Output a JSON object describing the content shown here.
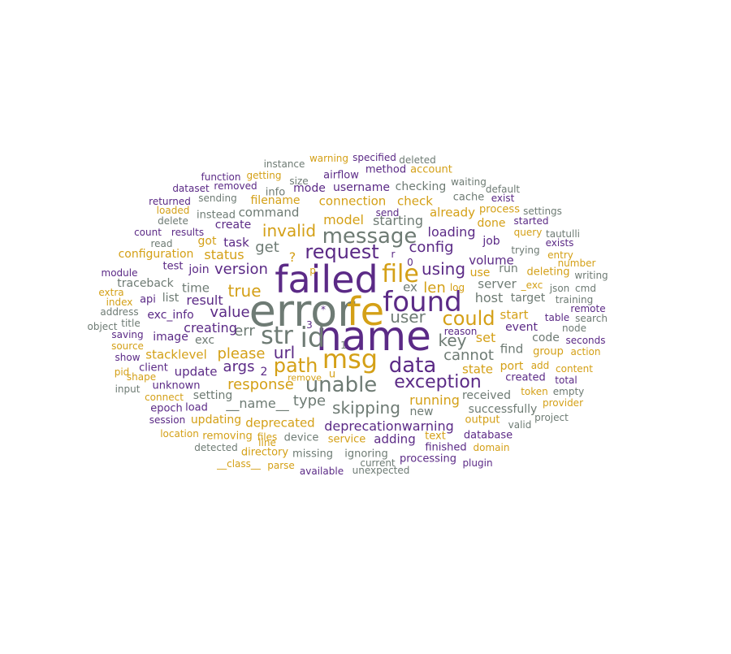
{
  "palette": {
    "purple": "#5b2a86",
    "gold": "#d4a017",
    "gray": "#6e7b74"
  },
  "words": [
    {
      "text": "error",
      "color": "gray"
    },
    {
      "text": "name",
      "color": "purple"
    },
    {
      "text": "failed",
      "color": "purple"
    },
    {
      "text": "fe",
      "color": "gold"
    },
    {
      "text": "id",
      "color": "gray"
    },
    {
      "text": "found",
      "color": "purple"
    },
    {
      "text": "str",
      "color": "gray"
    },
    {
      "text": "msg",
      "color": "gold"
    },
    {
      "text": "file",
      "color": "gold"
    },
    {
      "text": "message",
      "color": "gray"
    },
    {
      "text": "data",
      "color": "purple"
    },
    {
      "text": "unable",
      "color": "gray"
    },
    {
      "text": "request",
      "color": "purple"
    },
    {
      "text": "path",
      "color": "gold"
    },
    {
      "text": "exception",
      "color": "purple"
    },
    {
      "text": "could",
      "color": "gold"
    },
    {
      "text": "user",
      "color": "gray"
    },
    {
      "text": "key",
      "color": "gray"
    },
    {
      "text": "using",
      "color": "purple"
    },
    {
      "text": "url",
      "color": "purple"
    },
    {
      "text": "invalid",
      "color": "gold"
    },
    {
      "text": "skipping",
      "color": "gray"
    },
    {
      "text": "config",
      "color": "purple"
    },
    {
      "text": "true",
      "color": "gold"
    },
    {
      "text": "response",
      "color": "gold"
    },
    {
      "text": "value",
      "color": "purple"
    },
    {
      "text": "please",
      "color": "gold"
    },
    {
      "text": "len",
      "color": "gold"
    },
    {
      "text": "get",
      "color": "gray"
    },
    {
      "text": "version",
      "color": "purple"
    },
    {
      "text": "err",
      "color": "gray"
    },
    {
      "text": "args",
      "color": "purple"
    },
    {
      "text": "running",
      "color": "gold"
    },
    {
      "text": "cannot",
      "color": "gray"
    },
    {
      "text": "type",
      "color": "gray"
    },
    {
      "text": "__name__",
      "color": "gray"
    },
    {
      "text": "deprecationwarning",
      "color": "purple"
    },
    {
      "text": "loading",
      "color": "purple"
    },
    {
      "text": "creating",
      "color": "purple"
    },
    {
      "text": "model",
      "color": "gold"
    },
    {
      "text": "starting",
      "color": "gray"
    },
    {
      "text": "status",
      "color": "gold"
    },
    {
      "text": "host",
      "color": "gray"
    },
    {
      "text": "result",
      "color": "purple"
    },
    {
      "text": "set",
      "color": "gold"
    },
    {
      "text": "connection",
      "color": "gold"
    },
    {
      "text": "check",
      "color": "gold"
    },
    {
      "text": "already",
      "color": "gold"
    },
    {
      "text": "command",
      "color": "gray"
    },
    {
      "text": "2",
      "color": "purple"
    },
    {
      "text": "ex",
      "color": "gray"
    },
    {
      "text": "?",
      "color": "gold"
    },
    {
      "text": "state",
      "color": "gold"
    },
    {
      "text": "volume",
      "color": "purple"
    },
    {
      "text": "task",
      "color": "purple"
    },
    {
      "text": "deprecated",
      "color": "gold"
    },
    {
      "text": "update",
      "color": "purple"
    },
    {
      "text": "stacklevel",
      "color": "gold"
    },
    {
      "text": "time",
      "color": "gray"
    },
    {
      "text": "start",
      "color": "gold"
    },
    {
      "text": "adding",
      "color": "purple"
    },
    {
      "text": "received",
      "color": "gray"
    },
    {
      "text": "find",
      "color": "gray"
    },
    {
      "text": "server",
      "color": "gray"
    },
    {
      "text": "done",
      "color": "gold"
    },
    {
      "text": "job",
      "color": "purple"
    },
    {
      "text": "event",
      "color": "purple"
    },
    {
      "text": "checking",
      "color": "gray"
    },
    {
      "text": "username",
      "color": "purple"
    },
    {
      "text": "mode",
      "color": "purple"
    },
    {
      "text": "create",
      "color": "purple"
    },
    {
      "text": "got",
      "color": "gold"
    },
    {
      "text": "image",
      "color": "purple"
    },
    {
      "text": "port",
      "color": "gold"
    },
    {
      "text": "new",
      "color": "gray"
    },
    {
      "text": "setting",
      "color": "gray"
    },
    {
      "text": "updating",
      "color": "gold"
    },
    {
      "text": "successfully",
      "color": "gray"
    },
    {
      "text": "target",
      "color": "gray"
    },
    {
      "text": "code",
      "color": "gray"
    },
    {
      "text": "run",
      "color": "gray"
    },
    {
      "text": "use",
      "color": "gold"
    },
    {
      "text": "group",
      "color": "gold"
    },
    {
      "text": "deleting",
      "color": "gold"
    },
    {
      "text": "service",
      "color": "gold"
    },
    {
      "text": "u",
      "color": "gold"
    },
    {
      "text": "exc",
      "color": "gray"
    },
    {
      "text": "text",
      "color": "gold"
    },
    {
      "text": "processing",
      "color": "purple"
    },
    {
      "text": "output",
      "color": "gold"
    },
    {
      "text": "list",
      "color": "gray"
    },
    {
      "text": "join",
      "color": "purple"
    },
    {
      "text": "exc_info",
      "color": "purple"
    },
    {
      "text": "configuration",
      "color": "gold"
    },
    {
      "text": "traceback",
      "color": "gray"
    },
    {
      "text": "device",
      "color": "gray"
    },
    {
      "text": "database",
      "color": "purple"
    },
    {
      "text": "filename",
      "color": "gold"
    },
    {
      "text": "removing",
      "color": "gold"
    },
    {
      "text": "info",
      "color": "gray"
    },
    {
      "text": "instead",
      "color": "gray"
    },
    {
      "text": "api",
      "color": "purple"
    },
    {
      "text": "unknown",
      "color": "purple"
    },
    {
      "text": "load",
      "color": "purple"
    },
    {
      "text": "epoch",
      "color": "purple"
    },
    {
      "text": "method",
      "color": "purple"
    },
    {
      "text": "finished",
      "color": "purple"
    },
    {
      "text": "ignoring",
      "color": "gray"
    },
    {
      "text": "missing",
      "color": "gray"
    },
    {
      "text": "directory",
      "color": "gold"
    },
    {
      "text": "cache",
      "color": "gray"
    },
    {
      "text": "created",
      "color": "purple"
    },
    {
      "text": "test",
      "color": "purple"
    },
    {
      "text": "client",
      "color": "purple"
    },
    {
      "text": "process",
      "color": "gold"
    },
    {
      "text": "airflow",
      "color": "purple"
    },
    {
      "text": "account",
      "color": "gold"
    },
    {
      "text": "specified",
      "color": "purple"
    },
    {
      "text": "warning",
      "color": "gold"
    },
    {
      "text": "deleted",
      "color": "gray"
    },
    {
      "text": "instance",
      "color": "gray"
    },
    {
      "text": "getting",
      "color": "gold"
    },
    {
      "text": "function",
      "color": "purple"
    },
    {
      "text": "size",
      "color": "gray"
    },
    {
      "text": "removed",
      "color": "purple"
    },
    {
      "text": "sending",
      "color": "gray"
    },
    {
      "text": "dataset",
      "color": "purple"
    },
    {
      "text": "returned",
      "color": "purple"
    },
    {
      "text": "loaded",
      "color": "gold"
    },
    {
      "text": "delete",
      "color": "gray"
    },
    {
      "text": "count",
      "color": "purple"
    },
    {
      "text": "results",
      "color": "purple"
    },
    {
      "text": "read",
      "color": "gray"
    },
    {
      "text": "module",
      "color": "purple"
    },
    {
      "text": "extra",
      "color": "gold"
    },
    {
      "text": "index",
      "color": "gold"
    },
    {
      "text": "address",
      "color": "gray"
    },
    {
      "text": "object",
      "color": "gray"
    },
    {
      "text": "title",
      "color": "gray"
    },
    {
      "text": "saving",
      "color": "purple"
    },
    {
      "text": "source",
      "color": "gold"
    },
    {
      "text": "show",
      "color": "purple"
    },
    {
      "text": "pid",
      "color": "gold"
    },
    {
      "text": "shape",
      "color": "gold"
    },
    {
      "text": "input",
      "color": "gray"
    },
    {
      "text": "connect",
      "color": "gold"
    },
    {
      "text": "session",
      "color": "purple"
    },
    {
      "text": "location",
      "color": "gold"
    },
    {
      "text": "detected",
      "color": "gray"
    },
    {
      "text": "__class__",
      "color": "gold"
    },
    {
      "text": "parse",
      "color": "gold"
    },
    {
      "text": "available",
      "color": "purple"
    },
    {
      "text": "unexpected",
      "color": "gray"
    },
    {
      "text": "files",
      "color": "gold"
    },
    {
      "text": "line",
      "color": "gold"
    },
    {
      "text": "current",
      "color": "gray"
    },
    {
      "text": "plugin",
      "color": "purple"
    },
    {
      "text": "domain",
      "color": "gold"
    },
    {
      "text": "valid",
      "color": "gray"
    },
    {
      "text": "project",
      "color": "gray"
    },
    {
      "text": "provider",
      "color": "gold"
    },
    {
      "text": "empty",
      "color": "gray"
    },
    {
      "text": "token",
      "color": "gold"
    },
    {
      "text": "total",
      "color": "purple"
    },
    {
      "text": "content",
      "color": "gold"
    },
    {
      "text": "add",
      "color": "gold"
    },
    {
      "text": "action",
      "color": "gold"
    },
    {
      "text": "seconds",
      "color": "purple"
    },
    {
      "text": "node",
      "color": "gray"
    },
    {
      "text": "table",
      "color": "purple"
    },
    {
      "text": "search",
      "color": "gray"
    },
    {
      "text": "remote",
      "color": "purple"
    },
    {
      "text": "training",
      "color": "gray"
    },
    {
      "text": "json",
      "color": "gray"
    },
    {
      "text": "cmd",
      "color": "gray"
    },
    {
      "text": "_exc",
      "color": "gold"
    },
    {
      "text": "writing",
      "color": "gray"
    },
    {
      "text": "number",
      "color": "gold"
    },
    {
      "text": "entry",
      "color": "gold"
    },
    {
      "text": "exists",
      "color": "purple"
    },
    {
      "text": "tautulli",
      "color": "gray"
    },
    {
      "text": "trying",
      "color": "gray"
    },
    {
      "text": "query",
      "color": "gold"
    },
    {
      "text": "started",
      "color": "purple"
    },
    {
      "text": "settings",
      "color": "gray"
    },
    {
      "text": "exist",
      "color": "purple"
    },
    {
      "text": "default",
      "color": "gray"
    },
    {
      "text": "waiting",
      "color": "gray"
    },
    {
      "text": "send",
      "color": "purple"
    },
    {
      "text": "r",
      "color": "purple"
    },
    {
      "text": "0",
      "color": "purple"
    },
    {
      "text": "log",
      "color": "gold"
    },
    {
      "text": "p",
      "color": "gold"
    },
    {
      "text": "reason",
      "color": "purple"
    },
    {
      "text": "remove",
      "color": "gold"
    },
    {
      "text": "1",
      "color": "gray"
    },
    {
      "text": "3",
      "color": "purple"
    },
    {
      "text": "*",
      "color": "purple"
    }
  ]
}
